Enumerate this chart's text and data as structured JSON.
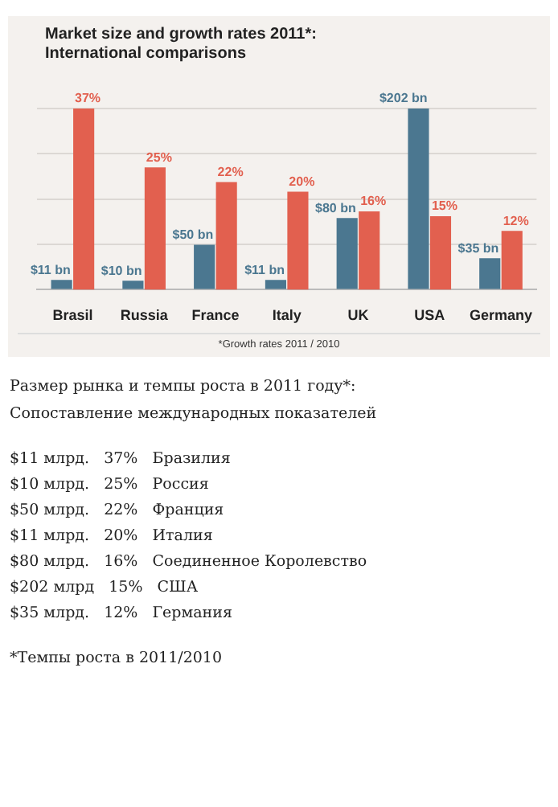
{
  "chart_data": [
    {
      "type": "bar",
      "title": "Market size and growth rates 2011*:",
      "subtitle": "International comparisons",
      "categories": [
        "Brasil",
        "Russia",
        "France",
        "Italy",
        "UK",
        "USA",
        "Germany"
      ],
      "series": [
        {
          "color": "#4b7790",
          "values": [
            11,
            10,
            50,
            11,
            80,
            202,
            35
          ],
          "value_labels": [
            "$11 bn",
            "$10 bn",
            "$50 bn",
            "$11 bn",
            "$80 bn",
            "$202 bn",
            "$35 bn"
          ]
        },
        {
          "color": "#e2604f",
          "axis": "y2",
          "values": [
            37,
            25,
            22,
            20,
            16,
            15,
            12
          ],
          "value_labels": [
            "37%",
            "25%",
            "22%",
            "20%",
            "16%",
            "15%",
            "12%"
          ]
        }
      ],
      "grid": "y",
      "annotations": [
        "*Growth rates 2011 / 2010"
      ]
    },
    {
      "type": "other",
      "title": "Размер рынка и темпы роста в 2011 году*:",
      "subtitle": "Сопоставление международных показателей",
      "annotations": [
        "$11 млрд.   37%   Бразилия",
        "$10 млрд.   25%   Россия",
        "$50 млрд.   22%   Франция",
        "$11 млрд.   20%   Италия",
        "$80 млрд.   16%   Соединенное Королевство",
        "$202 млрд   15%   США",
        "$35 млрд.   12%   Германия",
        "*Темпы роста в 2011/2010"
      ]
    }
  ]
}
